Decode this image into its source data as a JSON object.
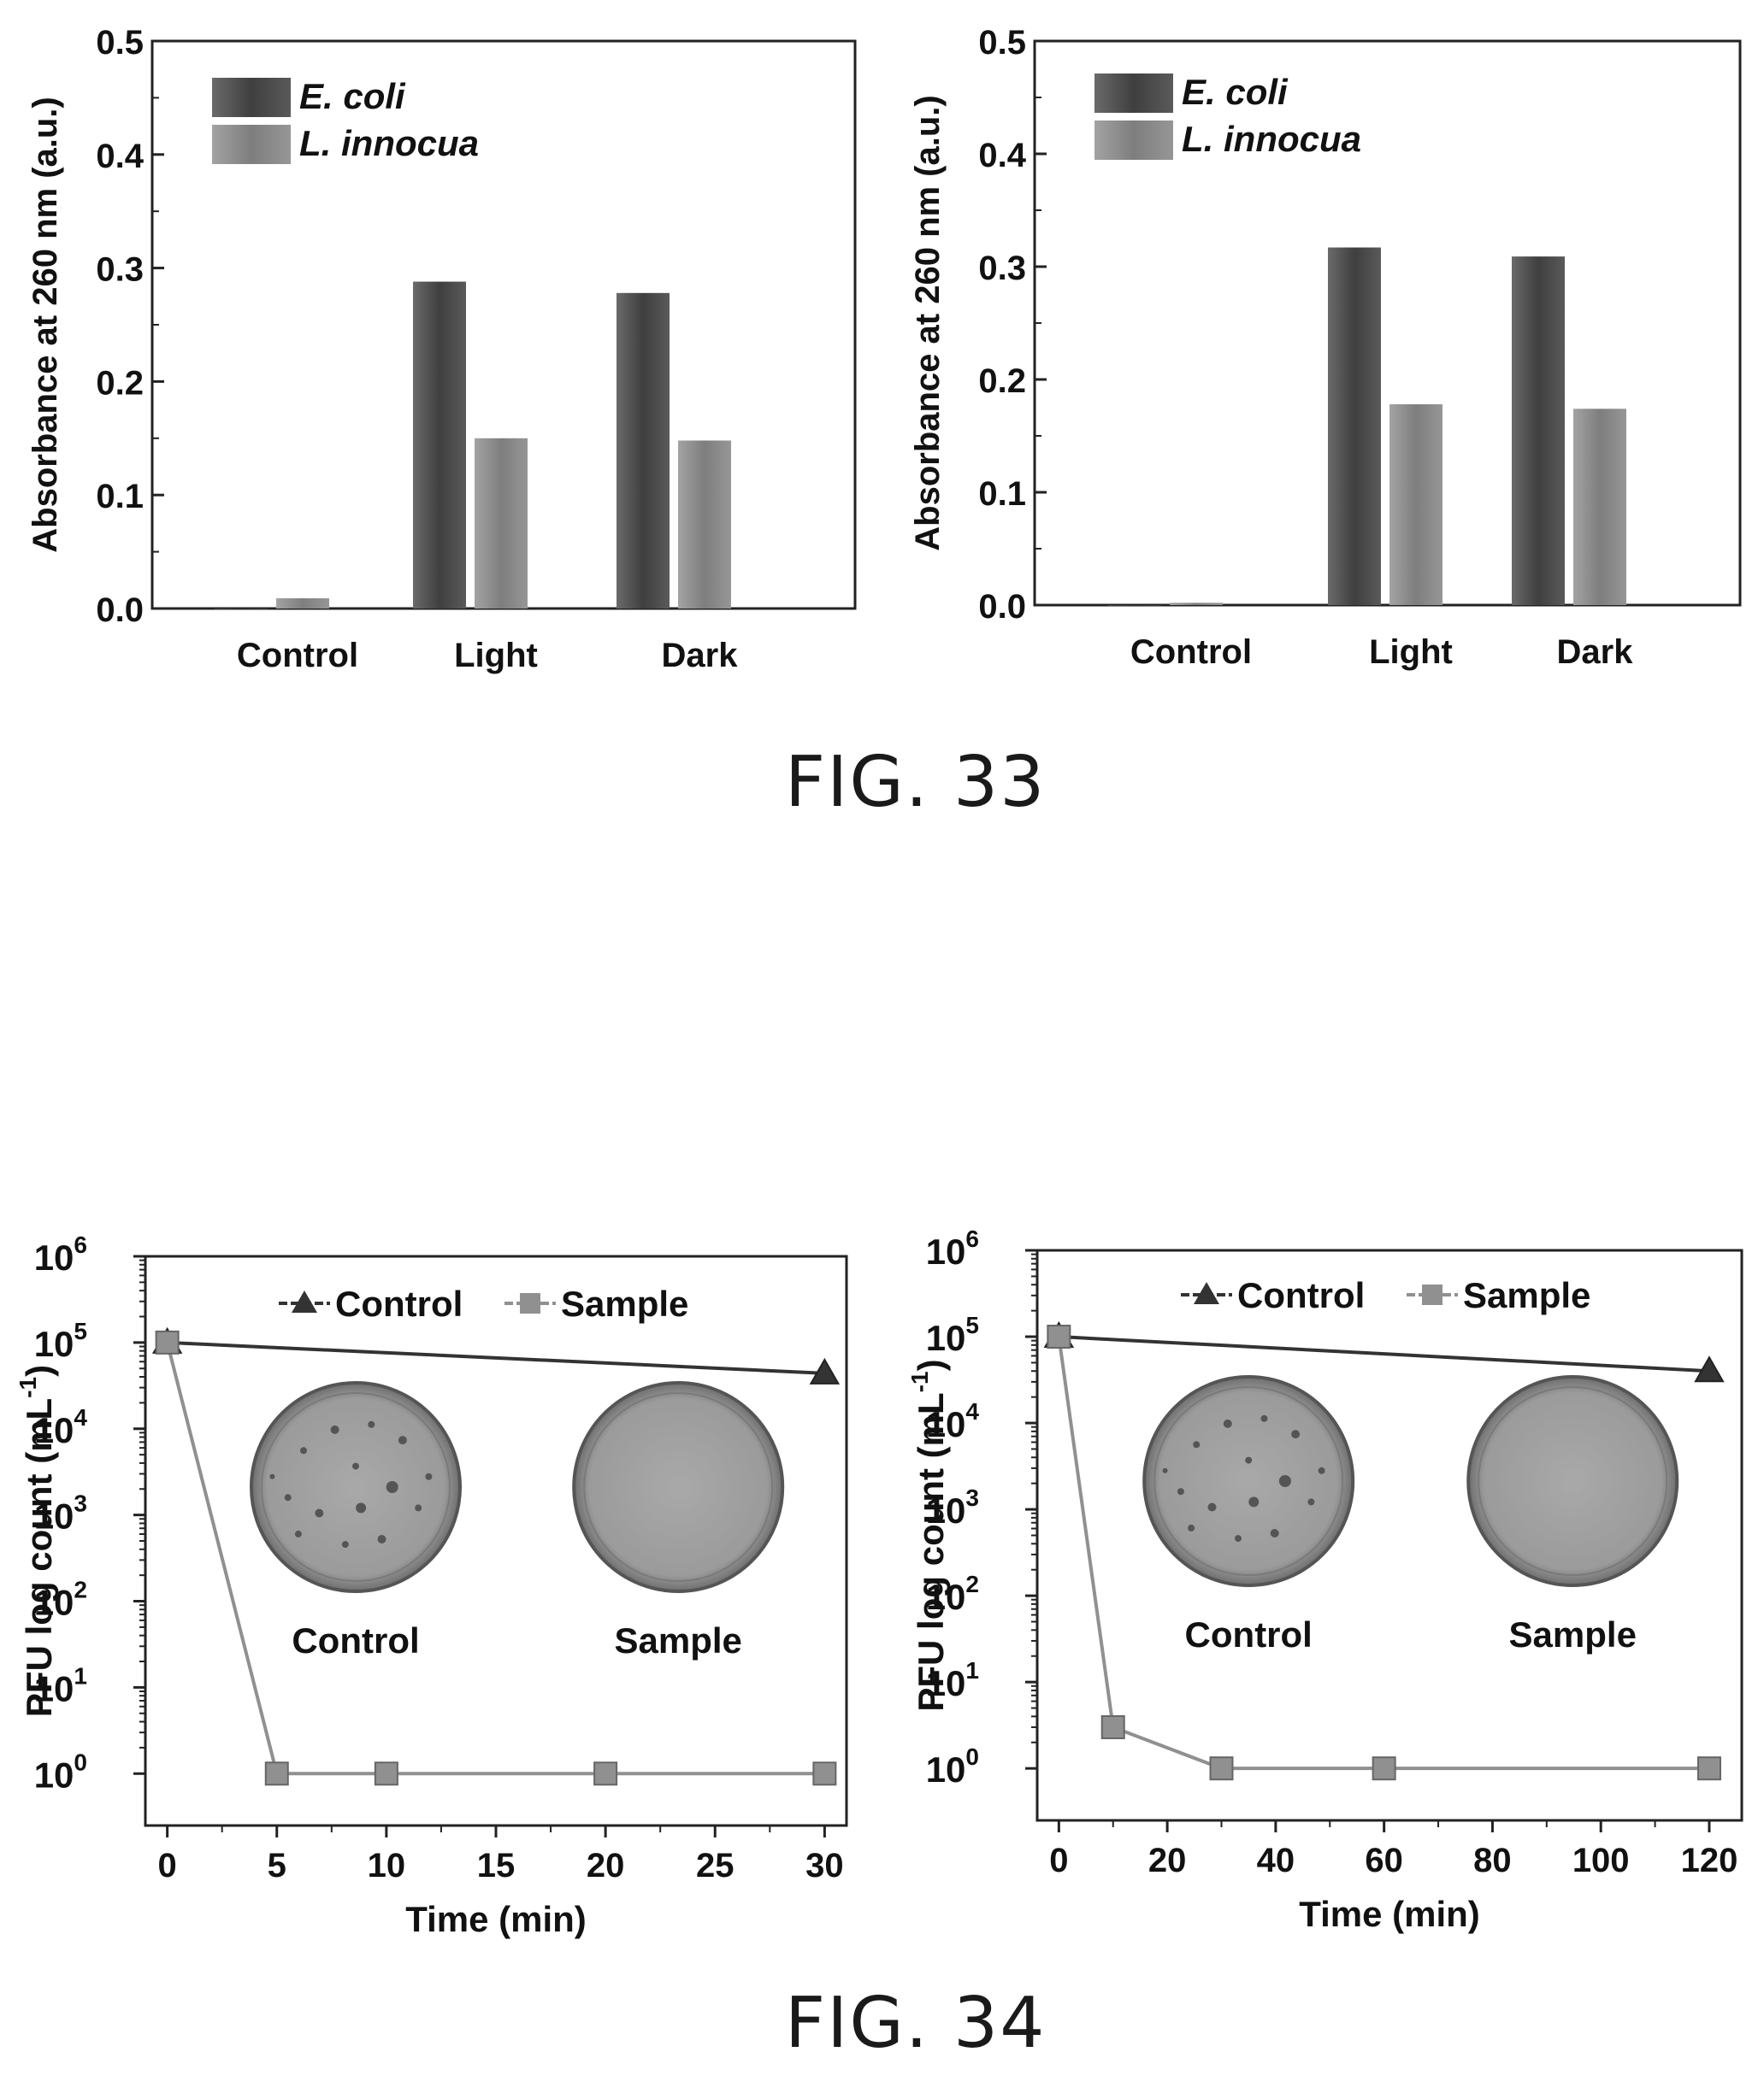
{
  "figures": {
    "fig33_caption": "FIG. 33",
    "fig34_caption": "FIG. 34"
  },
  "colors": {
    "ecoli": "#4a4a4a",
    "linnocua": "#8c8c8c",
    "control_series": "#333333",
    "sample_series": "#909090"
  },
  "chart_data": [
    {
      "type": "bar",
      "ylabel": "Absorbance at 260 nm (a.u.)",
      "xlabel": "",
      "categories": [
        "Control",
        "Light",
        "Dark"
      ],
      "ylim": [
        0.0,
        0.5
      ],
      "yticks": [
        "0.0",
        "0.1",
        "0.2",
        "0.3",
        "0.4",
        "0.5"
      ],
      "series": [
        {
          "name": "E. coli",
          "values": [
            0.0,
            0.288,
            0.278
          ]
        },
        {
          "name": "L. innocua",
          "values": [
            0.009,
            0.15,
            0.148
          ]
        }
      ],
      "legend": "top-left",
      "grid": false
    },
    {
      "type": "bar",
      "ylabel": "Absorbance at 260 nm (a.u.)",
      "xlabel": "",
      "categories": [
        "Control",
        "Light",
        "Dark"
      ],
      "ylim": [
        0.0,
        0.5
      ],
      "yticks": [
        "0.0",
        "0.1",
        "0.2",
        "0.3",
        "0.4",
        "0.5"
      ],
      "series": [
        {
          "name": "E. coli",
          "values": [
            0.0,
            0.317,
            0.309
          ]
        },
        {
          "name": "L. innocua",
          "values": [
            0.002,
            0.178,
            0.174
          ]
        }
      ],
      "legend": "top-left",
      "grid": false
    },
    {
      "type": "line",
      "yscale": "log",
      "ylabel": "PFU log count (mL-1)",
      "xlabel": "Time (min)",
      "xlim": [
        -1,
        31
      ],
      "xticks": [
        0,
        5,
        10,
        15,
        20,
        25,
        30
      ],
      "ylim": [
        0.25,
        1000000
      ],
      "yticks": [
        1,
        10,
        100,
        1000,
        10000,
        100000,
        1000000
      ],
      "series": [
        {
          "name": "Control",
          "marker": "triangle",
          "x": [
            0,
            30
          ],
          "y": [
            100000,
            44000
          ]
        },
        {
          "name": "Sample",
          "marker": "square",
          "x": [
            0,
            5,
            10,
            20,
            30
          ],
          "y": [
            100000,
            1,
            1,
            1,
            1
          ]
        }
      ],
      "annotations": [
        "Control",
        "Sample"
      ],
      "legend": "top"
    },
    {
      "type": "line",
      "yscale": "log",
      "ylabel": "PFU log count (mL-1)",
      "xlabel": "Time (min)",
      "xlim": [
        -4,
        126
      ],
      "xticks": [
        0,
        20,
        40,
        60,
        80,
        100,
        120
      ],
      "ylim": [
        0.25,
        1000000
      ],
      "yticks": [
        1,
        10,
        100,
        1000,
        10000,
        100000,
        1000000
      ],
      "series": [
        {
          "name": "Control",
          "marker": "triangle",
          "x": [
            0,
            120
          ],
          "y": [
            100000,
            40000
          ]
        },
        {
          "name": "Sample",
          "marker": "square",
          "x": [
            0,
            10,
            30,
            60,
            120
          ],
          "y": [
            100000,
            3,
            1,
            1,
            1
          ]
        }
      ],
      "annotations": [
        "Control",
        "Sample"
      ],
      "legend": "top"
    }
  ]
}
